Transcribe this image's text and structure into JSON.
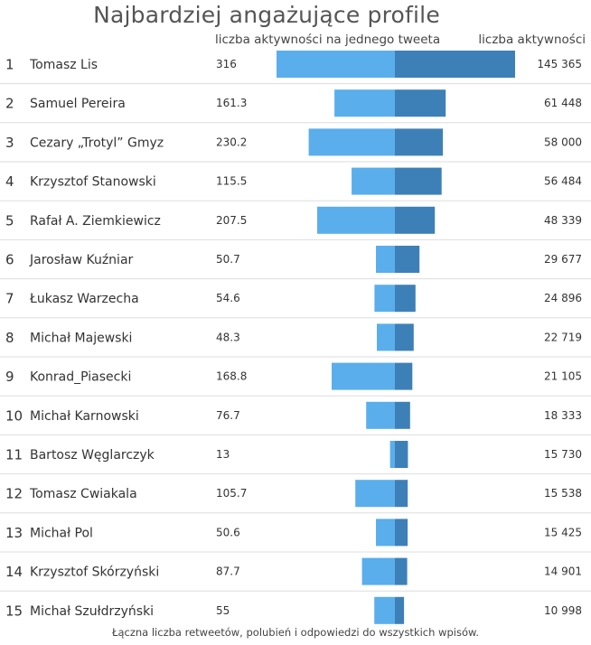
{
  "chart_data": {
    "type": "bar",
    "title": "Najbardziej angażujące profile",
    "left_header": "liczba aktywności na jednego tweeta",
    "right_header": "liczba aktywności",
    "footnote": "Łączna liczba retweetów, polubień i odpowiedzi do wszystkich wpisów.",
    "colors": {
      "per_tweet": "#5aaeeb",
      "total": "#3d80b8"
    },
    "rows": [
      {
        "rank": "1",
        "name": "Tomasz Lis",
        "per_tweet": 316,
        "per_tweet_label": "316",
        "total": 145365,
        "total_label": "145 365"
      },
      {
        "rank": "2",
        "name": "Samuel Pereira",
        "per_tweet": 161.3,
        "per_tweet_label": "161.3",
        "total": 61448,
        "total_label": "61 448"
      },
      {
        "rank": "3",
        "name": "Cezary „Trotyl” Gmyz",
        "per_tweet": 230.2,
        "per_tweet_label": "230.2",
        "total": 58000,
        "total_label": "58 000"
      },
      {
        "rank": "4",
        "name": "Krzysztof Stanowski",
        "per_tweet": 115.5,
        "per_tweet_label": "115.5",
        "total": 56484,
        "total_label": "56 484"
      },
      {
        "rank": "5",
        "name": "Rafał A. Ziemkiewicz",
        "per_tweet": 207.5,
        "per_tweet_label": "207.5",
        "total": 48339,
        "total_label": "48 339"
      },
      {
        "rank": "6",
        "name": "Jarosław Kuźniar",
        "per_tweet": 50.7,
        "per_tweet_label": "50.7",
        "total": 29677,
        "total_label": "29 677"
      },
      {
        "rank": "7",
        "name": "Łukasz Warzecha",
        "per_tweet": 54.6,
        "per_tweet_label": "54.6",
        "total": 24896,
        "total_label": "24 896"
      },
      {
        "rank": "8",
        "name": "Michał Majewski",
        "per_tweet": 48.3,
        "per_tweet_label": "48.3",
        "total": 22719,
        "total_label": "22 719"
      },
      {
        "rank": "9",
        "name": "Konrad_Piasecki",
        "per_tweet": 168.8,
        "per_tweet_label": "168.8",
        "total": 21105,
        "total_label": "21 105"
      },
      {
        "rank": "10",
        "name": "Michał Karnowski",
        "per_tweet": 76.7,
        "per_tweet_label": "76.7",
        "total": 18333,
        "total_label": "18 333"
      },
      {
        "rank": "11",
        "name": "Bartosz Węglarczyk",
        "per_tweet": 13,
        "per_tweet_label": "13",
        "total": 15730,
        "total_label": "15 730"
      },
      {
        "rank": "12",
        "name": "Tomasz Cwiakala",
        "per_tweet": 105.7,
        "per_tweet_label": "105.7",
        "total": 15538,
        "total_label": "15 538"
      },
      {
        "rank": "13",
        "name": "Michał Pol",
        "per_tweet": 50.6,
        "per_tweet_label": "50.6",
        "total": 15425,
        "total_label": "15 425"
      },
      {
        "rank": "14",
        "name": "Krzysztof Skórzyński",
        "per_tweet": 87.7,
        "per_tweet_label": "87.7",
        "total": 14901,
        "total_label": "14 901"
      },
      {
        "rank": "15",
        "name": "Michał Szułdrzyński",
        "per_tweet": 55,
        "per_tweet_label": "55",
        "total": 10998,
        "total_label": "10 998"
      }
    ]
  }
}
